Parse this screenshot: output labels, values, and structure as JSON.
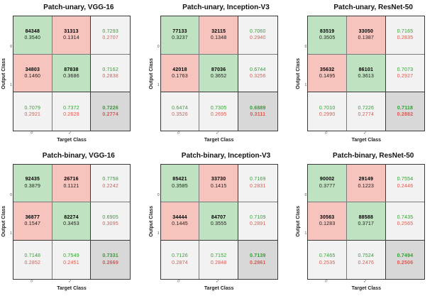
{
  "colors": {
    "diagonal_cell": "#bfe3c0",
    "off_diagonal_cell": "#f6c3bd",
    "summary_cell": "#f2f2f2",
    "total_cell": "#d8d8d8",
    "positive_text": "#2fa02f",
    "negative_text": "#e0564d",
    "grid_border": "#3a3a3a"
  },
  "axis": {
    "ylabel": "Output Class",
    "xlabel": "Target Class",
    "yticks": [
      "0",
      "1"
    ],
    "xticks": [
      "0",
      "1"
    ]
  },
  "chart_data": [
    {
      "type": "heatmap",
      "title": "Patch-unary, VGG-16",
      "classes": [
        "0",
        "1"
      ],
      "rows": [
        [
          {
            "kind": "diag",
            "value": "84348",
            "pct": "0.3540"
          },
          {
            "kind": "off",
            "value": "31313",
            "pct": "0.1314"
          },
          {
            "kind": "sum",
            "value": "0.7293",
            "pct": "0.2707"
          }
        ],
        [
          {
            "kind": "off",
            "value": "34803",
            "pct": "0.1460"
          },
          {
            "kind": "diag",
            "value": "87838",
            "pct": "0.3686"
          },
          {
            "kind": "sum",
            "value": "0.7162",
            "pct": "0.2838"
          }
        ],
        [
          {
            "kind": "sum",
            "value": "0.7079",
            "pct": "0.2921"
          },
          {
            "kind": "sum",
            "value": "0.7372",
            "pct": "0.2628"
          },
          {
            "kind": "total",
            "value": "0.7226",
            "pct": "0.2774"
          }
        ]
      ]
    },
    {
      "type": "heatmap",
      "title": "Patch-unary, Inception-V3",
      "classes": [
        "0",
        "1"
      ],
      "rows": [
        [
          {
            "kind": "diag",
            "value": "77133",
            "pct": "0.3237"
          },
          {
            "kind": "off",
            "value": "32115",
            "pct": "0.1348"
          },
          {
            "kind": "sum",
            "value": "0.7060",
            "pct": "0.2940"
          }
        ],
        [
          {
            "kind": "off",
            "value": "42018",
            "pct": "0.1763"
          },
          {
            "kind": "diag",
            "value": "87036",
            "pct": "0.3652"
          },
          {
            "kind": "sum",
            "value": "0.6744",
            "pct": "0.3256"
          }
        ],
        [
          {
            "kind": "sum",
            "value": "0.6474",
            "pct": "0.3526"
          },
          {
            "kind": "sum",
            "value": "0.7305",
            "pct": "0.2695"
          },
          {
            "kind": "total",
            "value": "0.6889",
            "pct": "0.3111"
          }
        ]
      ]
    },
    {
      "type": "heatmap",
      "title": "Patch-unary, ResNet-50",
      "classes": [
        "0",
        "1"
      ],
      "rows": [
        [
          {
            "kind": "diag",
            "value": "83519",
            "pct": "0.3505"
          },
          {
            "kind": "off",
            "value": "33050",
            "pct": "0.1387"
          },
          {
            "kind": "sum",
            "value": "0.7165",
            "pct": "0.2835"
          }
        ],
        [
          {
            "kind": "off",
            "value": "35632",
            "pct": "0.1495"
          },
          {
            "kind": "diag",
            "value": "86101",
            "pct": "0.3613"
          },
          {
            "kind": "sum",
            "value": "0.7073",
            "pct": "0.2927"
          }
        ],
        [
          {
            "kind": "sum",
            "value": "0.7010",
            "pct": "0.2990"
          },
          {
            "kind": "sum",
            "value": "0.7226",
            "pct": "0.2774"
          },
          {
            "kind": "total",
            "value": "0.7118",
            "pct": "0.2882"
          }
        ]
      ]
    },
    {
      "type": "heatmap",
      "title": "Patch-binary, VGG-16",
      "classes": [
        "0",
        "1"
      ],
      "rows": [
        [
          {
            "kind": "diag",
            "value": "92435",
            "pct": "0.3879"
          },
          {
            "kind": "off",
            "value": "26716",
            "pct": "0.1121"
          },
          {
            "kind": "sum",
            "value": "0.7758",
            "pct": "0.2242"
          }
        ],
        [
          {
            "kind": "off",
            "value": "36877",
            "pct": "0.1547"
          },
          {
            "kind": "diag",
            "value": "82274",
            "pct": "0.3453"
          },
          {
            "kind": "sum",
            "value": "0.6905",
            "pct": "0.3095"
          }
        ],
        [
          {
            "kind": "sum",
            "value": "0.7148",
            "pct": "0.2852"
          },
          {
            "kind": "sum",
            "value": "0.7549",
            "pct": "0.2451"
          },
          {
            "kind": "total",
            "value": "0.7331",
            "pct": "0.2669"
          }
        ]
      ]
    },
    {
      "type": "heatmap",
      "title": "Patch-binary, Inception-V3",
      "classes": [
        "0",
        "1"
      ],
      "rows": [
        [
          {
            "kind": "diag",
            "value": "85421",
            "pct": "0.3585"
          },
          {
            "kind": "off",
            "value": "33730",
            "pct": "0.1415"
          },
          {
            "kind": "sum",
            "value": "0.7169",
            "pct": "0.2831"
          }
        ],
        [
          {
            "kind": "off",
            "value": "34444",
            "pct": "0.1445"
          },
          {
            "kind": "diag",
            "value": "84707",
            "pct": "0.3555"
          },
          {
            "kind": "sum",
            "value": "0.7109",
            "pct": "0.2891"
          }
        ],
        [
          {
            "kind": "sum",
            "value": "0.7126",
            "pct": "0.2874"
          },
          {
            "kind": "sum",
            "value": "0.7152",
            "pct": "0.2848"
          },
          {
            "kind": "total",
            "value": "0.7139",
            "pct": "0.2861"
          }
        ]
      ]
    },
    {
      "type": "heatmap",
      "title": "Patch-binary, ResNet-50",
      "classes": [
        "0",
        "1"
      ],
      "rows": [
        [
          {
            "kind": "diag",
            "value": "90002",
            "pct": "0.3777"
          },
          {
            "kind": "off",
            "value": "29149",
            "pct": "0.1223"
          },
          {
            "kind": "sum",
            "value": "0.7554",
            "pct": "0.2446"
          }
        ],
        [
          {
            "kind": "off",
            "value": "30563",
            "pct": "0.1283"
          },
          {
            "kind": "diag",
            "value": "88588",
            "pct": "0.3717"
          },
          {
            "kind": "sum",
            "value": "0.7435",
            "pct": "0.2565"
          }
        ],
        [
          {
            "kind": "sum",
            "value": "0.7465",
            "pct": "0.2535"
          },
          {
            "kind": "sum",
            "value": "0.7524",
            "pct": "0.2476"
          },
          {
            "kind": "total",
            "value": "0.7494",
            "pct": "0.2506"
          }
        ]
      ]
    }
  ]
}
